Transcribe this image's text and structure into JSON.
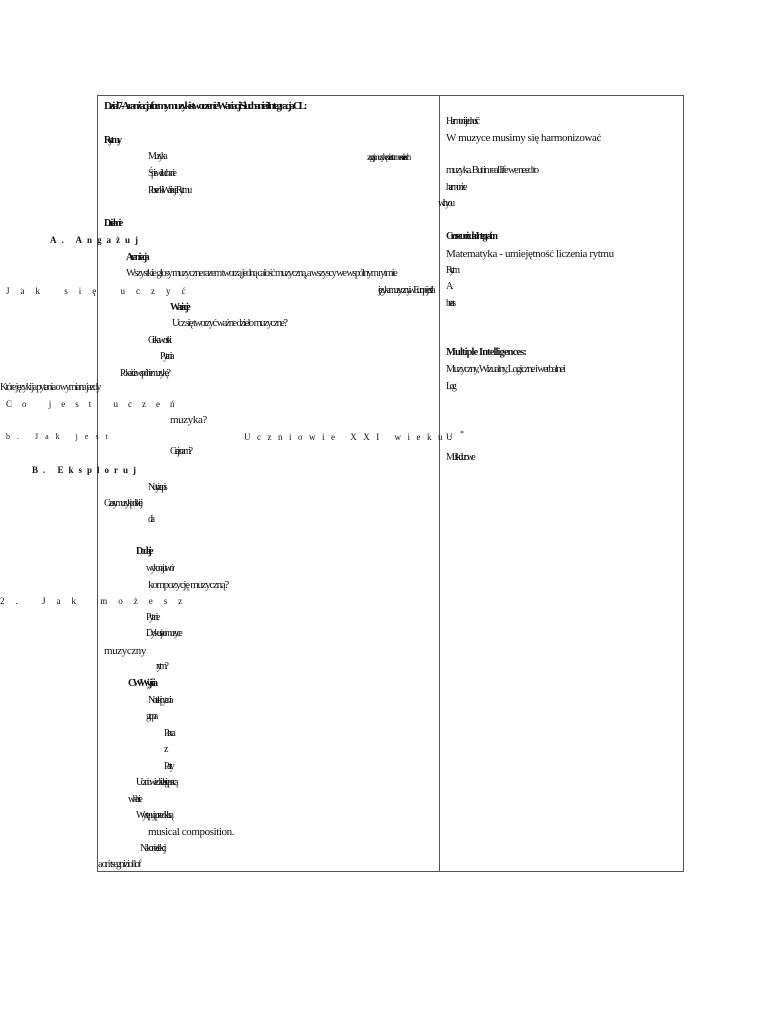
{
  "left_column": {
    "heading": "Dział 7- Aranżacja formy muzyki stworzenie Wariacji Słuchanie i Integracja CL:",
    "sections": {
      "rytmy": "Rytmy",
      "muzyka": "Muzyka",
      "sluchanie": "Śpiew i słuchanie",
      "piosenki": "Piosenki i Wariacje Rytmu",
      "dzialanie": "Działanie",
      "aranzacja": "Aranżacja",
      "zagraj_label": "Zagraj i zaśpiewaj z nami",
      "wszystkie": "Wszystkie głosy muzyczne razem tworzą jedną całość muzyczną, a wszyscy we wspólnym rytmie",
      "wariacje": "Wariacje",
      "ucz_sie": "Ucz się tworzyć ważne dzieło muzyczne?",
      "ciekawostki": "Ciekawostki",
      "pytania": "Pytania",
      "pokaz": "Pokażcie wspólnie muzykę?",
      "muzyka_q": "muzyka?",
      "graj_z": "Graj z nami?",
      "nuty": "Nuty i zapis",
      "czasy": "Czasy muzyki polskiej",
      "dla": "dla",
      "dodaje": "Dodaje",
      "wykonaj": "wykonaj utwór",
      "kompozycja": "kompozycję muzyczną?",
      "pytanie": "Pytanie",
      "dyskusja": "Dyskusja o muzyce",
      "muzyczny": "muzyczny",
      "rytm": "rytm?",
      "cw_wyjscia": "CW Wyjścia",
      "notatki": "Notatki i pytania",
      "grupa": "grupa",
      "praca": "Praca",
      "z": "z",
      "party": "Party",
      "uczniowie": "Uczniowie dzielą się pracą",
      "w_klasie": "w klasie",
      "wystepuja": "Występują przed klasą",
      "musical_composition": "musical composition.",
      "na_koniec": "Na koniec lekcji",
      "footer_cut": "a or i tsegniziol lof",
      "zagraj_right": "zagraj muzykę na instrumencie i ruch",
      "jezyk_right": "języka muzyczny i w Europie  jest. Ja"
    }
  },
  "margin_rotated": [
    "A. Angażuj",
    "Jak się uczyć",
    "Które języki ja pytania o wymiana jazdy",
    "Co jest uczeń",
    "b. Jak jest",
    "B. Eksploruj",
    "2. Jak możesz"
  ],
  "center_reversed_line": "Uczniowie XXI wieku:",
  "right_column": {
    "harmonia": "Harmonia i jedność",
    "w_muzyce": "W muzyce musimy się harmonizować",
    "muzyka_but": "muzyka. But in real life we need to",
    "harmonize": "harmonize",
    "with": "with you",
    "math_heading": "Cross-curricular Integration",
    "math_text": "Matematyka - umiejętność liczenia rytmu",
    "rhythm": "Rytm",
    "a": "A.",
    "beats": "beats",
    "mi_heading": "Multiple Intelligences:",
    "mi_text": "Muzyczny, Wizualny, Logiczne i werbalnei",
    "log": "Log",
    "star": "*",
    "u": "U",
    "multi": "Multi-kulturowe"
  }
}
